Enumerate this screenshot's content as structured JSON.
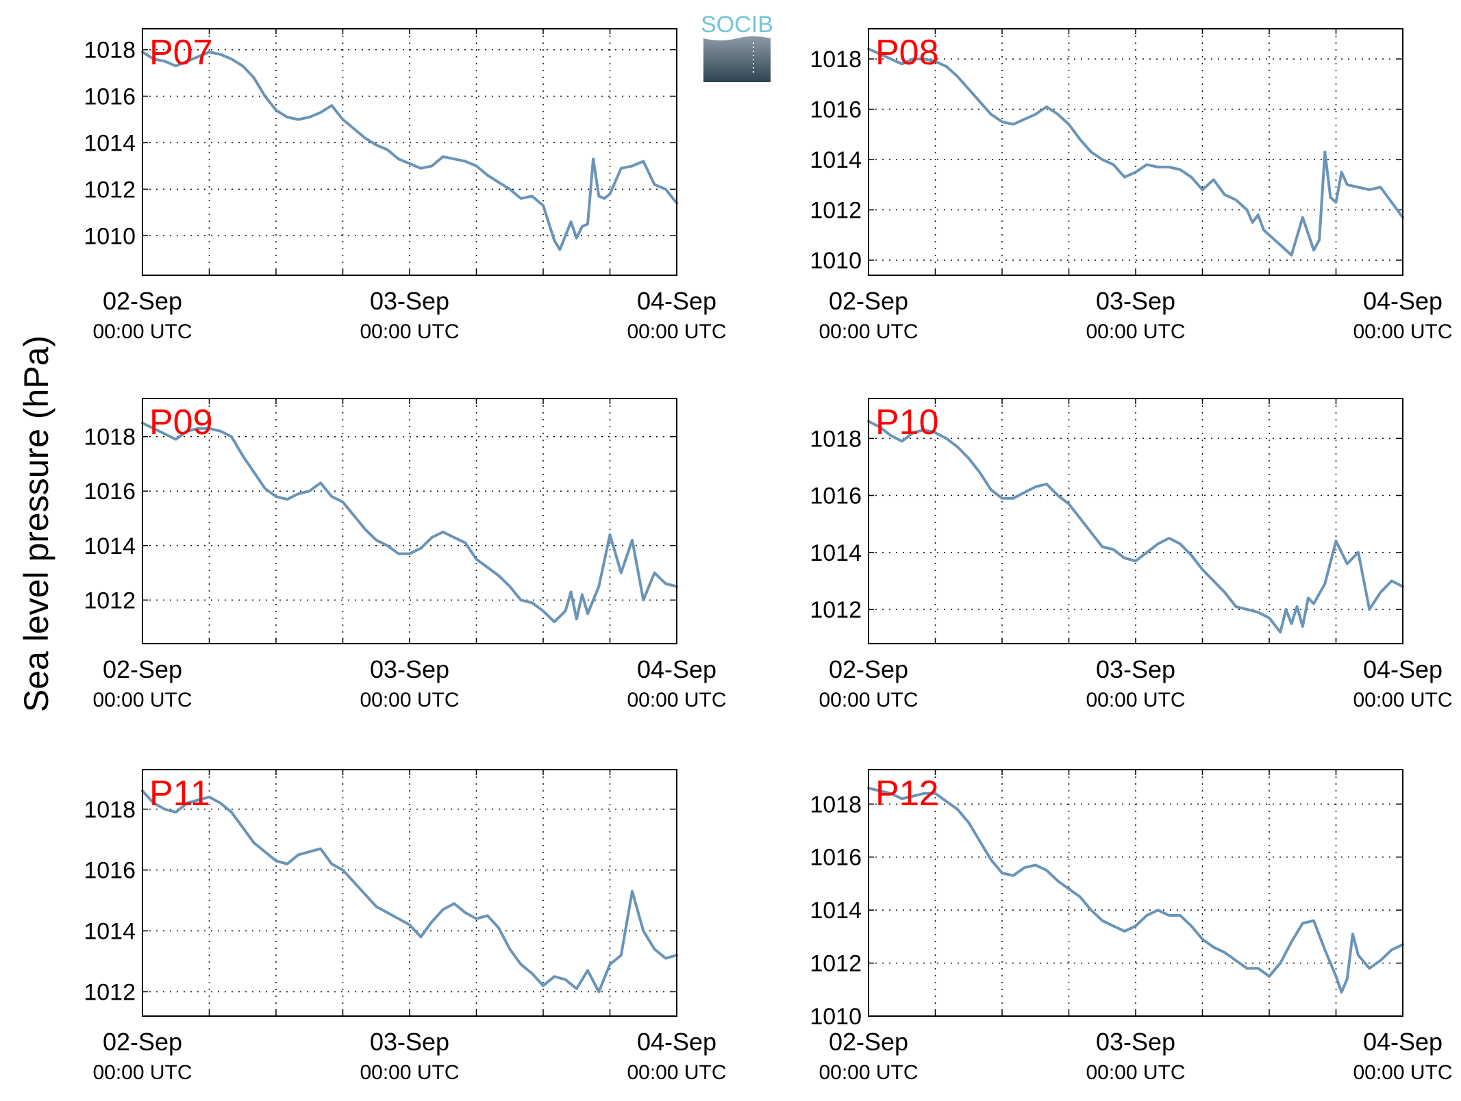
{
  "figure": {
    "ylabel": "Sea level pressure (hPa)",
    "logo_text": "SOCIB",
    "date_labels": [
      "02-Sep",
      "03-Sep",
      "04-Sep"
    ],
    "time_label": "00:00 UTC",
    "line_color": "#6a94b8",
    "label_color": "#ff0000"
  },
  "chart_data": [
    {
      "type": "line",
      "title": "P07",
      "x_range_hours": [
        0,
        48
      ],
      "ylim": [
        1008.3,
        1018.9
      ],
      "yticks": [
        1010,
        1012,
        1014,
        1016,
        1018
      ],
      "grid": true,
      "x_hours": [
        0,
        1,
        2,
        3,
        4,
        5,
        6,
        7,
        8,
        9,
        10,
        11,
        12,
        13,
        14,
        15,
        16,
        17,
        18,
        19,
        20,
        21,
        22,
        23,
        24,
        25,
        26,
        27,
        28,
        29,
        30,
        31,
        32,
        33,
        34,
        35,
        36,
        37,
        37.5,
        38,
        38.5,
        39,
        39.5,
        40,
        40.5,
        41,
        41.5,
        42,
        43,
        44,
        45,
        46,
        47,
        48
      ],
      "values": [
        1017.9,
        1017.6,
        1017.5,
        1017.3,
        1017.5,
        1017.7,
        1017.9,
        1017.8,
        1017.6,
        1017.3,
        1016.8,
        1016.0,
        1015.4,
        1015.1,
        1015.0,
        1015.1,
        1015.3,
        1015.6,
        1015.0,
        1014.6,
        1014.2,
        1013.9,
        1013.7,
        1013.3,
        1013.1,
        1012.9,
        1013.0,
        1013.4,
        1013.3,
        1013.2,
        1013.0,
        1012.6,
        1012.3,
        1012.0,
        1011.6,
        1011.7,
        1011.3,
        1009.8,
        1009.4,
        1010.0,
        1010.6,
        1009.9,
        1010.4,
        1010.5,
        1013.3,
        1011.7,
        1011.6,
        1011.8,
        1012.9,
        1013.0,
        1013.2,
        1012.2,
        1012.0,
        1011.4
      ]
    },
    {
      "type": "line",
      "title": "P08",
      "x_range_hours": [
        0,
        48
      ],
      "ylim": [
        1009.4,
        1019.2
      ],
      "yticks": [
        1010,
        1012,
        1014,
        1016,
        1018
      ],
      "grid": true,
      "x_hours": [
        0,
        1,
        2,
        3,
        4,
        5,
        6,
        7,
        8,
        9,
        10,
        11,
        12,
        13,
        14,
        15,
        16,
        17,
        18,
        19,
        20,
        21,
        22,
        23,
        24,
        25,
        26,
        27,
        28,
        29,
        30,
        31,
        32,
        33,
        34,
        34.5,
        35,
        35.5,
        36,
        37,
        38,
        39,
        40,
        40.5,
        41,
        41.5,
        42,
        42.5,
        43,
        44,
        45,
        46,
        47,
        48
      ],
      "values": [
        1018.4,
        1018.2,
        1018.0,
        1017.8,
        1018.0,
        1018.0,
        1017.9,
        1017.7,
        1017.3,
        1016.8,
        1016.3,
        1015.8,
        1015.5,
        1015.4,
        1015.6,
        1015.8,
        1016.1,
        1015.8,
        1015.4,
        1014.8,
        1014.3,
        1014.0,
        1013.8,
        1013.3,
        1013.5,
        1013.8,
        1013.7,
        1013.7,
        1013.6,
        1013.3,
        1012.8,
        1013.2,
        1012.6,
        1012.4,
        1012.0,
        1011.5,
        1011.8,
        1011.2,
        1011.0,
        1010.6,
        1010.2,
        1011.7,
        1010.4,
        1010.8,
        1014.3,
        1012.5,
        1012.3,
        1013.5,
        1013.0,
        1012.9,
        1012.8,
        1012.9,
        1012.3,
        1011.7
      ]
    },
    {
      "type": "line",
      "title": "P09",
      "x_range_hours": [
        0,
        48
      ],
      "ylim": [
        1010.4,
        1019.4
      ],
      "yticks": [
        1012,
        1014,
        1016,
        1018
      ],
      "grid": true,
      "x_hours": [
        0,
        1,
        2,
        3,
        4,
        5,
        6,
        7,
        8,
        9,
        10,
        11,
        12,
        13,
        14,
        15,
        16,
        17,
        18,
        19,
        20,
        21,
        22,
        23,
        24,
        25,
        26,
        27,
        28,
        29,
        30,
        31,
        32,
        33,
        34,
        35,
        36,
        37,
        38,
        38.5,
        39,
        39.5,
        40,
        40.5,
        41,
        42,
        43,
        44,
        45,
        46,
        47,
        48
      ],
      "values": [
        1018.5,
        1018.3,
        1018.1,
        1017.9,
        1018.2,
        1018.3,
        1018.3,
        1018.2,
        1018.0,
        1017.3,
        1016.7,
        1016.1,
        1015.8,
        1015.7,
        1015.9,
        1016.0,
        1016.3,
        1015.8,
        1015.6,
        1015.1,
        1014.6,
        1014.2,
        1014.0,
        1013.7,
        1013.7,
        1013.9,
        1014.3,
        1014.5,
        1014.3,
        1014.1,
        1013.5,
        1013.2,
        1012.9,
        1012.5,
        1012.0,
        1011.9,
        1011.6,
        1011.2,
        1011.6,
        1012.3,
        1011.3,
        1012.2,
        1011.5,
        1012.0,
        1012.5,
        1014.4,
        1013.0,
        1014.2,
        1012.0,
        1013.0,
        1012.6,
        1012.5
      ]
    },
    {
      "type": "line",
      "title": "P10",
      "x_range_hours": [
        0,
        48
      ],
      "ylim": [
        1010.8,
        1019.4
      ],
      "yticks": [
        1012,
        1014,
        1016,
        1018
      ],
      "grid": true,
      "x_hours": [
        0,
        1,
        2,
        3,
        4,
        5,
        6,
        7,
        8,
        9,
        10,
        11,
        12,
        13,
        14,
        15,
        16,
        17,
        18,
        19,
        20,
        21,
        22,
        23,
        24,
        25,
        26,
        27,
        28,
        29,
        30,
        31,
        32,
        33,
        34,
        35,
        36,
        37,
        37.5,
        38,
        38.5,
        39,
        39.5,
        40,
        41,
        42,
        43,
        44,
        45,
        46,
        47,
        48
      ],
      "values": [
        1018.6,
        1018.4,
        1018.1,
        1017.9,
        1018.2,
        1018.3,
        1018.2,
        1018.0,
        1017.7,
        1017.3,
        1016.8,
        1016.2,
        1015.9,
        1015.9,
        1016.1,
        1016.3,
        1016.4,
        1016.0,
        1015.7,
        1015.2,
        1014.7,
        1014.2,
        1014.1,
        1013.8,
        1013.7,
        1014.0,
        1014.3,
        1014.5,
        1014.3,
        1013.9,
        1013.4,
        1013.0,
        1012.6,
        1012.1,
        1012.0,
        1011.9,
        1011.7,
        1011.2,
        1012.0,
        1011.5,
        1012.1,
        1011.4,
        1012.4,
        1012.2,
        1012.9,
        1014.4,
        1013.6,
        1014.0,
        1012.0,
        1012.6,
        1013.0,
        1012.8
      ]
    },
    {
      "type": "line",
      "title": "P11",
      "x_range_hours": [
        0,
        48
      ],
      "ylim": [
        1011.2,
        1019.3
      ],
      "yticks": [
        1012,
        1014,
        1016,
        1018
      ],
      "grid": true,
      "x_hours": [
        0,
        1,
        2,
        3,
        4,
        5,
        6,
        7,
        8,
        9,
        10,
        11,
        12,
        13,
        14,
        15,
        16,
        17,
        18,
        19,
        20,
        21,
        22,
        23,
        24,
        25,
        26,
        27,
        28,
        29,
        30,
        31,
        32,
        33,
        34,
        35,
        36,
        37,
        38,
        39,
        40,
        41,
        42,
        43,
        44,
        45,
        46,
        47,
        48
      ],
      "values": [
        1018.6,
        1018.2,
        1018.0,
        1017.9,
        1018.2,
        1018.3,
        1018.4,
        1018.2,
        1017.9,
        1017.4,
        1016.9,
        1016.6,
        1016.3,
        1016.2,
        1016.5,
        1016.6,
        1016.7,
        1016.2,
        1016.0,
        1015.6,
        1015.2,
        1014.8,
        1014.6,
        1014.4,
        1014.2,
        1013.8,
        1014.3,
        1014.7,
        1014.9,
        1014.6,
        1014.4,
        1014.5,
        1014.1,
        1013.4,
        1012.9,
        1012.6,
        1012.2,
        1012.5,
        1012.4,
        1012.1,
        1012.7,
        1012.0,
        1012.9,
        1013.2,
        1015.3,
        1014.0,
        1013.4,
        1013.1,
        1013.2
      ]
    },
    {
      "type": "line",
      "title": "P12",
      "x_range_hours": [
        0,
        48
      ],
      "ylim": [
        1010,
        1019.3
      ],
      "yticks": [
        1010,
        1012,
        1014,
        1016,
        1018
      ],
      "grid": true,
      "x_hours": [
        0,
        1,
        2,
        3,
        4,
        5,
        6,
        7,
        8,
        9,
        10,
        11,
        12,
        13,
        14,
        15,
        16,
        17,
        18,
        19,
        20,
        21,
        22,
        23,
        24,
        25,
        26,
        27,
        28,
        29,
        30,
        31,
        32,
        33,
        34,
        35,
        36,
        37,
        38,
        39,
        40,
        41,
        42,
        42.5,
        43,
        43.5,
        44,
        45,
        46,
        47,
        48
      ],
      "values": [
        1018.6,
        1018.5,
        1018.4,
        1018.2,
        1018.3,
        1018.4,
        1018.4,
        1018.1,
        1017.8,
        1017.3,
        1016.6,
        1015.9,
        1015.4,
        1015.3,
        1015.6,
        1015.7,
        1015.5,
        1015.1,
        1014.8,
        1014.5,
        1014.0,
        1013.6,
        1013.4,
        1013.2,
        1013.4,
        1013.8,
        1014.0,
        1013.8,
        1013.8,
        1013.4,
        1012.9,
        1012.6,
        1012.4,
        1012.1,
        1011.8,
        1011.8,
        1011.5,
        1012.0,
        1012.8,
        1013.5,
        1013.6,
        1012.5,
        1011.5,
        1010.9,
        1011.4,
        1013.1,
        1012.3,
        1011.8,
        1012.1,
        1012.5,
        1012.7
      ]
    }
  ]
}
